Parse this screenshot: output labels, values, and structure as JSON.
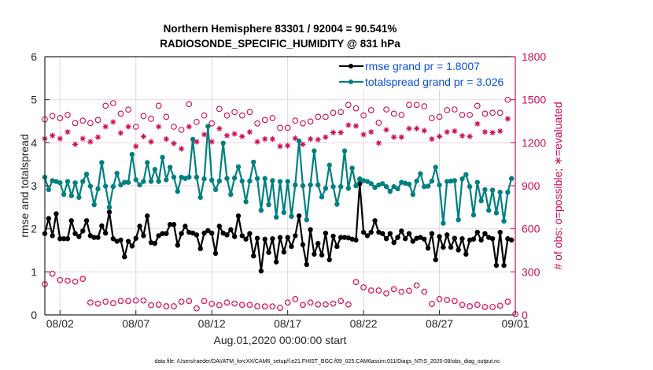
{
  "chart_data": {
    "type": "line",
    "title": "Northern Hemisphere 83301 / 92004 = 90.541%",
    "subtitle": "RADIOSONDE_SPECIFIC_HUMIDITY @ 831 hPa",
    "xlabel": "Aug.01,2020 00:00:00 start",
    "ylabel": "rmse and totalspread",
    "ylabel_right": "# of obs: o=possible; ∗=evaluated",
    "x_unit": "days since Aug.01,2020 00:00",
    "xlim": [
      0,
      31
    ],
    "ylim": [
      0,
      6
    ],
    "ylim_right": [
      0,
      1800
    ],
    "x_ticks": [
      {
        "day": 1,
        "label": "08/02"
      },
      {
        "day": 6,
        "label": "08/07"
      },
      {
        "day": 11,
        "label": "08/12"
      },
      {
        "day": 16,
        "label": "08/17"
      },
      {
        "day": 21,
        "label": "08/22"
      },
      {
        "day": 26,
        "label": "08/27"
      },
      {
        "day": 31,
        "label": "09/01"
      }
    ],
    "y_ticks": [
      "0",
      "1",
      "2",
      "3",
      "4",
      "5",
      "6"
    ],
    "y_ticks_right": [
      "0",
      "300",
      "600",
      "900",
      "1200",
      "1500",
      "1800"
    ],
    "grid": true,
    "legend_position": "top-right",
    "series": [
      {
        "name": "rmse grand pr = 1.8007",
        "color": "#000000",
        "axis": "left",
        "x_start": 0,
        "x_step": 0.25,
        "values": [
          1.89,
          2.24,
          1.84,
          2.35,
          1.77,
          1.77,
          1.77,
          2.19,
          1.89,
          1.82,
          1.95,
          2.19,
          1.84,
          1.8,
          1.8,
          2.07,
          1.9,
          2.39,
          1.77,
          1.71,
          1.74,
          1.35,
          1.71,
          1.6,
          1.78,
          2.06,
          1.84,
          2.3,
          1.68,
          1.66,
          1.84,
          1.89,
          1.89,
          2.1,
          2.1,
          1.62,
          1.89,
          2.06,
          1.92,
          1.9,
          1.86,
          1.54,
          1.9,
          1.96,
          1.9,
          1.43,
          2.06,
          1.9,
          1.86,
          1.98,
          1.82,
          2.3,
          1.84,
          1.76,
          1.89,
          1.37,
          1.78,
          1.02,
          1.76,
          1.45,
          1.77,
          1.23,
          1.8,
          1.46,
          1.8,
          1.59,
          1.84,
          2.3,
          1.63,
          1.17,
          1.98,
          1.41,
          1.66,
          1.39,
          1.9,
          1.28,
          1.83,
          1.59,
          1.8,
          1.8,
          1.79,
          1.76,
          1.74,
          3.05,
          1.92,
          1.84,
          1.92,
          2.19,
          1.92,
          1.89,
          1.77,
          1.89,
          1.68,
          1.8,
          1.95,
          1.77,
          1.89,
          1.71,
          1.78,
          1.8,
          1.76,
          1.55,
          1.89,
          1.28,
          1.82,
          1.57,
          1.86,
          1.57,
          1.78,
          1.51,
          1.77,
          1.41,
          1.74,
          1.76,
          1.92,
          1.74,
          1.89,
          1.8,
          1.77,
          1.15,
          1.92,
          1.15,
          1.77,
          1.74
        ]
      },
      {
        "name": "totalspread grand pr = 3.026",
        "color": "#008080",
        "axis": "left",
        "x_start": 0,
        "x_step": 0.25,
        "values": [
          3.2,
          2.91,
          3.12,
          3.1,
          3.07,
          2.8,
          3.1,
          2.77,
          3.07,
          2.73,
          3.1,
          3.27,
          2.99,
          2.56,
          2.93,
          3.54,
          2.99,
          2.5,
          2.98,
          3.29,
          3.02,
          3.08,
          3.08,
          3.73,
          3.14,
          3.02,
          3.1,
          3.54,
          3.1,
          3.38,
          3.1,
          3.66,
          3.14,
          3.43,
          3.2,
          2.87,
          3.2,
          3.17,
          3.2,
          4.08,
          3.2,
          2.73,
          3.16,
          4.38,
          3.13,
          2.91,
          3.11,
          3.99,
          3.17,
          2.8,
          3.18,
          3.44,
          3.11,
          2.63,
          3.11,
          3.55,
          3.17,
          2.43,
          3.17,
          2.56,
          3.12,
          2.27,
          3.1,
          2.38,
          3.1,
          2.29,
          3.02,
          4.04,
          3.0,
          2.21,
          3.02,
          3.81,
          3.02,
          2.74,
          2.94,
          3.48,
          2.98,
          2.57,
          2.98,
          3.81,
          2.94,
          3.41,
          3.0,
          3.16,
          3.12,
          3.1,
          3.05,
          2.96,
          3.02,
          3.05,
          2.98,
          2.87,
          2.98,
          2.93,
          3.08,
          3.06,
          3.04,
          2.8,
          3.11,
          3.28,
          2.98,
          2.99,
          3.11,
          3.43,
          3.02,
          2.13,
          3.1,
          3.11,
          3.12,
          2.21,
          3.16,
          3.26,
          2.98,
          2.32,
          3.08,
          2.65,
          2.91,
          2.43,
          2.9,
          2.37,
          2.85,
          2.18,
          2.85,
          3.17
        ]
      },
      {
        "name": "obs possible",
        "marker": "circle",
        "color": "#cc0a55",
        "axis": "right",
        "x_start": 0,
        "x_step": 0.5,
        "values": [
          1363,
          1387,
          1372,
          1394,
          1337,
          1354,
          1337,
          1359,
          1458,
          1476,
          1403,
          1431,
          1312,
          1387,
          1367,
          1458,
          1381,
          1312,
          1290,
          1469,
          1345,
          1390,
          1335,
          1436,
          1390,
          1414,
          1390,
          1414,
          1335,
          1359,
          1372,
          1304,
          1304,
          1354,
          1335,
          1348,
          1381,
          1381,
          1409,
          1414,
          1464,
          1440,
          1390,
          1427,
          1339,
          1432,
          1403,
          1394,
          1464,
          1464,
          1454,
          1372,
          1381,
          1427,
          1432,
          1394,
          1394,
          1458,
          1403,
          1409,
          1409,
          1500
        ]
      },
      {
        "name": "obs evaluated",
        "marker": "asterisk",
        "color": "#cc0a55",
        "axis": "right",
        "x_start": 0,
        "x_step": 0.5,
        "values": [
          1229,
          1250,
          1229,
          1275,
          1189,
          1229,
          1207,
          1239,
          1312,
          1345,
          1268,
          1312,
          1175,
          1244,
          1207,
          1312,
          1226,
          1195,
          1158,
          1312,
          1207,
          1257,
          1207,
          1299,
          1250,
          1262,
          1244,
          1275,
          1207,
          1226,
          1226,
          1175,
          1180,
          1231,
          1189,
          1226,
          1222,
          1239,
          1271,
          1271,
          1323,
          1317,
          1257,
          1275,
          1198,
          1290,
          1239,
          1239,
          1299,
          1299,
          1284,
          1226,
          1244,
          1275,
          1281,
          1248,
          1244,
          1332,
          1275,
          1271,
          1281,
          1367
        ]
      },
      {
        "name": "obs possible/evaluated (overlapping)",
        "marker": "circle+asterisk",
        "color": "#cc0a55",
        "axis": "right",
        "x_start": 0,
        "x_step": 0.5,
        "values": [
          214,
          287,
          243,
          238,
          232,
          251,
          86,
          79,
          92,
          82,
          97,
          97,
          101,
          101,
          68,
          71,
          60,
          60,
          92,
          97,
          46,
          97,
          77,
          68,
          86,
          79,
          70,
          70,
          60,
          59,
          59,
          49,
          86,
          110,
          70,
          86,
          73,
          73,
          79,
          97,
          73,
          229,
          192,
          170,
          170,
          150,
          179,
          161,
          168,
          205,
          161,
          77,
          110,
          104,
          97,
          70,
          60,
          70,
          55,
          55,
          64,
          92,
          5
        ]
      }
    ]
  },
  "legend": {
    "items": [
      {
        "label": "rmse grand pr = 1.8007",
        "color": "#000000"
      },
      {
        "label": "totalspread grand pr = 3.026",
        "color": "#008080"
      }
    ]
  },
  "footer": "data file: /Users/raeder/DAI/ATM_forcXX/CAM6_setup/f.e21.FHIST_BGC.f09_025.CAM6assim.011/Diags_NTrS_2020-08/obs_diag_output.nc"
}
